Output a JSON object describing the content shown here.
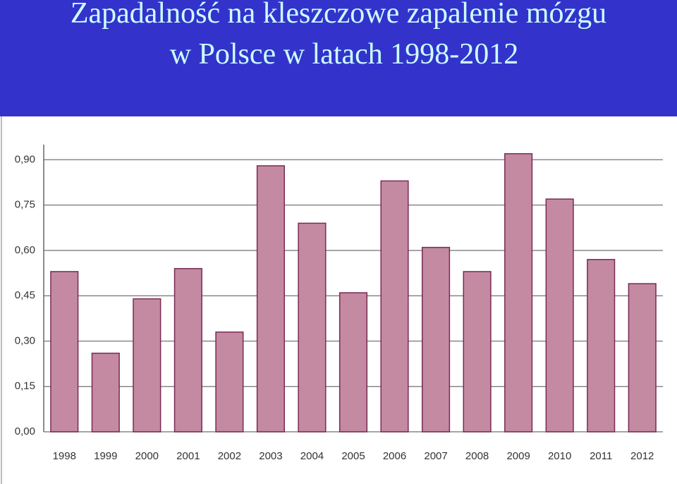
{
  "chart_data": {
    "type": "bar",
    "title": "Zapadalność na kleszczowe zapalenie mózgu",
    "subtitle": "w Polsce w latach 1998-2012",
    "categories": [
      "1998",
      "1999",
      "2000",
      "2001",
      "2002",
      "2003",
      "2004",
      "2005",
      "2006",
      "2007",
      "2008",
      "2009",
      "2010",
      "2011",
      "2012"
    ],
    "values": [
      0.53,
      0.26,
      0.44,
      0.54,
      0.33,
      0.88,
      0.69,
      0.46,
      0.83,
      0.61,
      0.53,
      0.92,
      0.77,
      0.57,
      0.49
    ],
    "color": "#c48aa2",
    "ylim": [
      0,
      0.95
    ],
    "yticks": [
      {
        "value": 0,
        "label": "0,00"
      },
      {
        "value": 0.15,
        "label": "0,15"
      },
      {
        "value": 0.3,
        "label": "0,30"
      },
      {
        "value": 0.45,
        "label": "0,45"
      },
      {
        "value": 0.6,
        "label": "0,60"
      },
      {
        "value": 0.75,
        "label": "0,75"
      },
      {
        "value": 0.9,
        "label": "0,90"
      }
    ],
    "grid": true
  }
}
